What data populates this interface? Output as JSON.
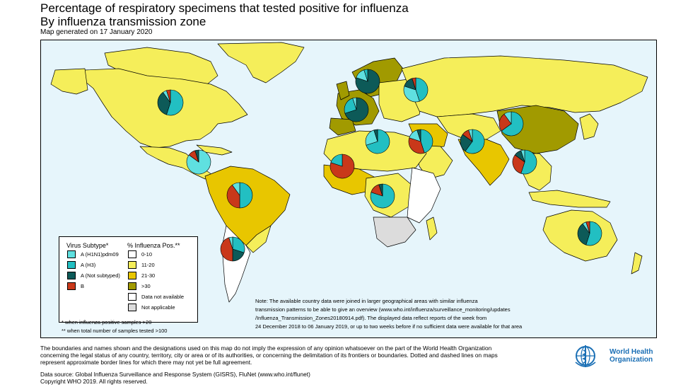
{
  "title_line1": "Percentage of respiratory specimens that tested positive for influenza",
  "title_line2": "By influenza transmission zone",
  "subtitle": "Map generated on 17 January 2020",
  "colors": {
    "ocean": "#e6f5fb",
    "pos_0_10": "#ffffff",
    "pos_11_20": "#f5ee5a",
    "pos_21_30": "#e8c600",
    "pos_gt30": "#a19a00",
    "not_available": "#ffffff",
    "not_applicable": "#dcdcdc",
    "h1n1": "#5fe0e0",
    "h3": "#22bfc2",
    "not_subtyped": "#0d5a58",
    "b": "#c9381a"
  },
  "legend": {
    "subtype_header": "Virus Subtype*",
    "pos_header": "% Influenza Pos.**",
    "subtypes": [
      {
        "label": "A (H1N1)pdm09",
        "color": "#5fe0e0"
      },
      {
        "label": "A (H3)",
        "color": "#22bfc2"
      },
      {
        "label": "A (Not subtyped)",
        "color": "#0d5a58"
      },
      {
        "label": "B",
        "color": "#c9381a"
      }
    ],
    "positivity": [
      {
        "label": "0-10",
        "color": "#ffffff"
      },
      {
        "label": "11-20",
        "color": "#f5ee5a"
      },
      {
        "label": "21-30",
        "color": "#e8c600"
      },
      {
        "label": ">30",
        "color": "#a19a00"
      },
      {
        "label": "Data not available",
        "color": "#ffffff"
      },
      {
        "label": "Not applicable",
        "color": "#dcdcdc"
      }
    ],
    "footnote1": "* when influenza positive samples >20",
    "footnote2": "** when total number of samples tested >100"
  },
  "note_lines": [
    "Note: The available country data were joined in larger geographical areas with similar influenza",
    "transmission patterns to be able to give an overview (www.who.int/influenza/surveillance_monitoring/updates",
    "/Influenza_Transmission_Zones20180914.pdf). The displayed data reflect reports of the week from",
    "24 December 2018 to 06 January 2019, or up to two weeks before if no sufficient data were available for that area"
  ],
  "disclaimer_lines": [
    "The boundaries and names shown and the designations used on this map do not imply the expression of any opinion whatsoever on the part of the World Health Organization",
    "concerning the legal status of any country, territory, city or area or of its authorities, or concerning the delimitation of its frontiers or boundaries. Dotted and dashed lines on maps",
    "represent approximate border lines for which there may not yet be full agreement."
  ],
  "source_line1": "Data source: Global Influenza Surveillance and Response System (GISRS), FluNet (www.who.int/flunet)",
  "source_line2": "Copyright WHO 2019. All rights reserved.",
  "who_logo": {
    "line1": "World Health",
    "line2": "Organization",
    "icon": "who-emblem-icon"
  },
  "zone_pies": [
    {
      "zone": "North America",
      "slices": [
        {
          "subtype": "h3",
          "pct": 55
        },
        {
          "subtype": "not_subtyped",
          "pct": 35
        },
        {
          "subtype": "h1n1",
          "pct": 5
        },
        {
          "subtype": "b",
          "pct": 5
        }
      ]
    },
    {
      "zone": "Central America and Caribbean",
      "slices": [
        {
          "subtype": "h1n1",
          "pct": 85
        },
        {
          "subtype": "b",
          "pct": 10
        },
        {
          "subtype": "not_subtyped",
          "pct": 5
        }
      ]
    },
    {
      "zone": "Tropical South America",
      "slices": [
        {
          "subtype": "h3",
          "pct": 50
        },
        {
          "subtype": "b",
          "pct": 40
        },
        {
          "subtype": "h1n1",
          "pct": 10
        }
      ]
    },
    {
      "zone": "Temperate South America",
      "slices": [
        {
          "subtype": "h3",
          "pct": 30
        },
        {
          "subtype": "not_subtyped",
          "pct": 20
        },
        {
          "subtype": "b",
          "pct": 45
        },
        {
          "subtype": "h1n1",
          "pct": 5
        }
      ]
    },
    {
      "zone": "Northern Europe",
      "slices": [
        {
          "subtype": "not_subtyped",
          "pct": 80
        },
        {
          "subtype": "h1n1",
          "pct": 15
        },
        {
          "subtype": "h3",
          "pct": 5
        }
      ]
    },
    {
      "zone": "South West Europe",
      "slices": [
        {
          "subtype": "not_subtyped",
          "pct": 70
        },
        {
          "subtype": "h3",
          "pct": 25
        },
        {
          "subtype": "h1n1",
          "pct": 5
        }
      ]
    },
    {
      "zone": "Eastern Europe",
      "slices": [
        {
          "subtype": "h3",
          "pct": 45
        },
        {
          "subtype": "h1n1",
          "pct": 35
        },
        {
          "subtype": "not_subtyped",
          "pct": 15
        },
        {
          "subtype": "b",
          "pct": 5
        }
      ]
    },
    {
      "zone": "Northern Africa",
      "slices": [
        {
          "subtype": "h3",
          "pct": 70
        },
        {
          "subtype": "h1n1",
          "pct": 25
        },
        {
          "subtype": "not_subtyped",
          "pct": 5
        }
      ]
    },
    {
      "zone": "Western Asia",
      "slices": [
        {
          "subtype": "h3",
          "pct": 45
        },
        {
          "subtype": "b",
          "pct": 35
        },
        {
          "subtype": "h1n1",
          "pct": 15
        },
        {
          "subtype": "not_subtyped",
          "pct": 5
        }
      ]
    },
    {
      "zone": "Southern Asia",
      "slices": [
        {
          "subtype": "h3",
          "pct": 60
        },
        {
          "subtype": "not_subtyped",
          "pct": 25
        },
        {
          "subtype": "b",
          "pct": 10
        },
        {
          "subtype": "h1n1",
          "pct": 5
        }
      ]
    },
    {
      "zone": "Eastern Asia",
      "slices": [
        {
          "subtype": "h3",
          "pct": 65
        },
        {
          "subtype": "b",
          "pct": 25
        },
        {
          "subtype": "h1n1",
          "pct": 10
        }
      ]
    },
    {
      "zone": "South-East Asia",
      "slices": [
        {
          "subtype": "h3",
          "pct": 55
        },
        {
          "subtype": "b",
          "pct": 30
        },
        {
          "subtype": "not_subtyped",
          "pct": 10
        },
        {
          "subtype": "h1n1",
          "pct": 5
        }
      ]
    },
    {
      "zone": "Western Africa",
      "slices": [
        {
          "subtype": "b",
          "pct": 80
        },
        {
          "subtype": "h3",
          "pct": 20
        }
      ]
    },
    {
      "zone": "Middle Africa",
      "slices": [
        {
          "subtype": "h3",
          "pct": 80
        },
        {
          "subtype": "b",
          "pct": 15
        },
        {
          "subtype": "not_subtyped",
          "pct": 5
        }
      ]
    },
    {
      "zone": "Oceania",
      "slices": [
        {
          "subtype": "h3",
          "pct": 55
        },
        {
          "subtype": "not_subtyped",
          "pct": 35
        },
        {
          "subtype": "h1n1",
          "pct": 5
        },
        {
          "subtype": "b",
          "pct": 5
        }
      ]
    }
  ]
}
